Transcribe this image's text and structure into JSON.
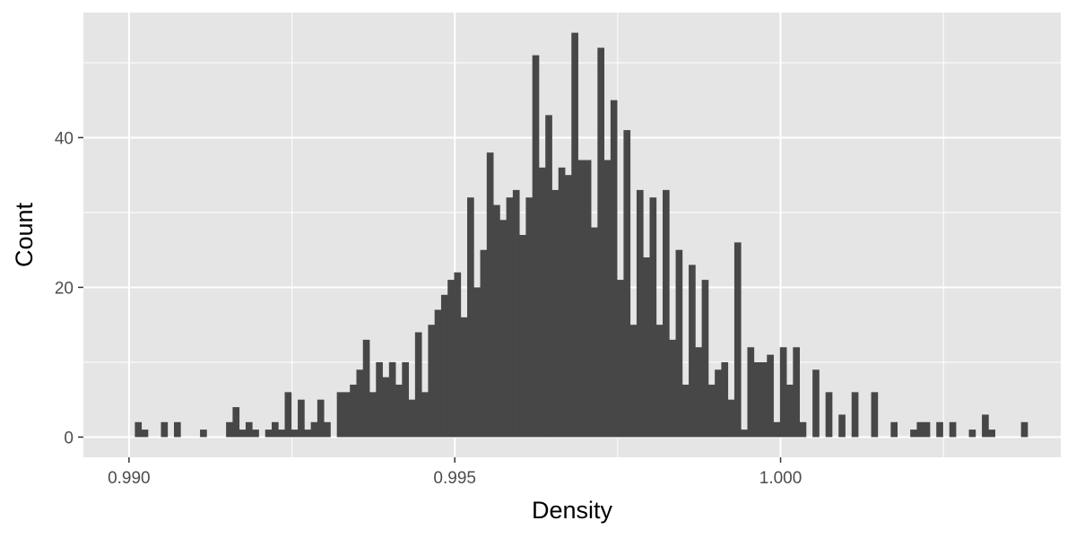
{
  "chart_data": {
    "type": "bar",
    "title": "",
    "xlabel": "Density",
    "ylabel": "Count",
    "xlim": [
      0.9893,
      1.0043
    ],
    "ylim": [
      -2.7,
      56.7
    ],
    "grid": true,
    "background_color": "#e5e5e5",
    "bar_color": "#474747",
    "grid_color": "#ffffff",
    "bin_width": 0.0001,
    "x_ticks": [
      0.99,
      0.995,
      1.0
    ],
    "x_tick_labels": [
      "0.990",
      "0.995",
      "1.000"
    ],
    "y_ticks": [
      0,
      20,
      40
    ],
    "y_tick_labels": [
      "0",
      "20",
      "40"
    ],
    "bins_start": [
      0.99009,
      0.99019,
      0.99049,
      0.99069,
      0.99109,
      0.99149,
      0.99159,
      0.99169,
      0.99179,
      0.99189,
      0.99209,
      0.99219,
      0.99229,
      0.99239,
      0.99249,
      0.99259,
      0.99269,
      0.99279,
      0.99289,
      0.99299,
      0.99319,
      0.99329,
      0.99339,
      0.99349,
      0.99359,
      0.99369,
      0.99379,
      0.99389,
      0.99399,
      0.99409,
      0.99419,
      0.99429,
      0.99439,
      0.99449,
      0.99459,
      0.99469,
      0.99479,
      0.99489,
      0.99499,
      0.99509,
      0.99519,
      0.99529,
      0.99539,
      0.99549,
      0.99559,
      0.99569,
      0.99579,
      0.99589,
      0.99599,
      0.99609,
      0.99619,
      0.99629,
      0.99639,
      0.99649,
      0.99659,
      0.99669,
      0.99679,
      0.99689,
      0.99699,
      0.99709,
      0.99719,
      0.99729,
      0.99739,
      0.99749,
      0.99759,
      0.99769,
      0.99779,
      0.99789,
      0.99799,
      0.99809,
      0.99819,
      0.99829,
      0.99839,
      0.99849,
      0.99859,
      0.99869,
      0.99879,
      0.99889,
      0.99899,
      0.99909,
      0.99919,
      0.99929,
      0.99939,
      0.99949,
      0.99959,
      0.99969,
      0.99979,
      0.99989,
      0.99999,
      1.00009,
      1.00019,
      1.00029,
      1.00049,
      1.00069,
      1.00089,
      1.00109,
      1.00139,
      1.00169,
      1.00199,
      1.00209,
      1.00219,
      1.00239,
      1.00259,
      1.00289,
      1.00309,
      1.00319,
      1.00369
    ],
    "counts": [
      2,
      1,
      2,
      2,
      1,
      2,
      4,
      1,
      2,
      1,
      1,
      2,
      1,
      6,
      1,
      5,
      1,
      2,
      5,
      2,
      6,
      6,
      7,
      9,
      13,
      6,
      10,
      8,
      10,
      7,
      10,
      5,
      14,
      6,
      15,
      17,
      19,
      21,
      22,
      16,
      32,
      20,
      25,
      38,
      31,
      29,
      32,
      33,
      27,
      32,
      51,
      36,
      43,
      33,
      36,
      35,
      54,
      37,
      37,
      28,
      52,
      37,
      45,
      21,
      41,
      15,
      33,
      24,
      32,
      15,
      33,
      13,
      25,
      7,
      23,
      12,
      21,
      7,
      9,
      10,
      5,
      26,
      1,
      12,
      10,
      10,
      11,
      2,
      12,
      7,
      12,
      2,
      9,
      6,
      3,
      6,
      6,
      2,
      1,
      2,
      2,
      2,
      2,
      1,
      3,
      1,
      2
    ]
  }
}
